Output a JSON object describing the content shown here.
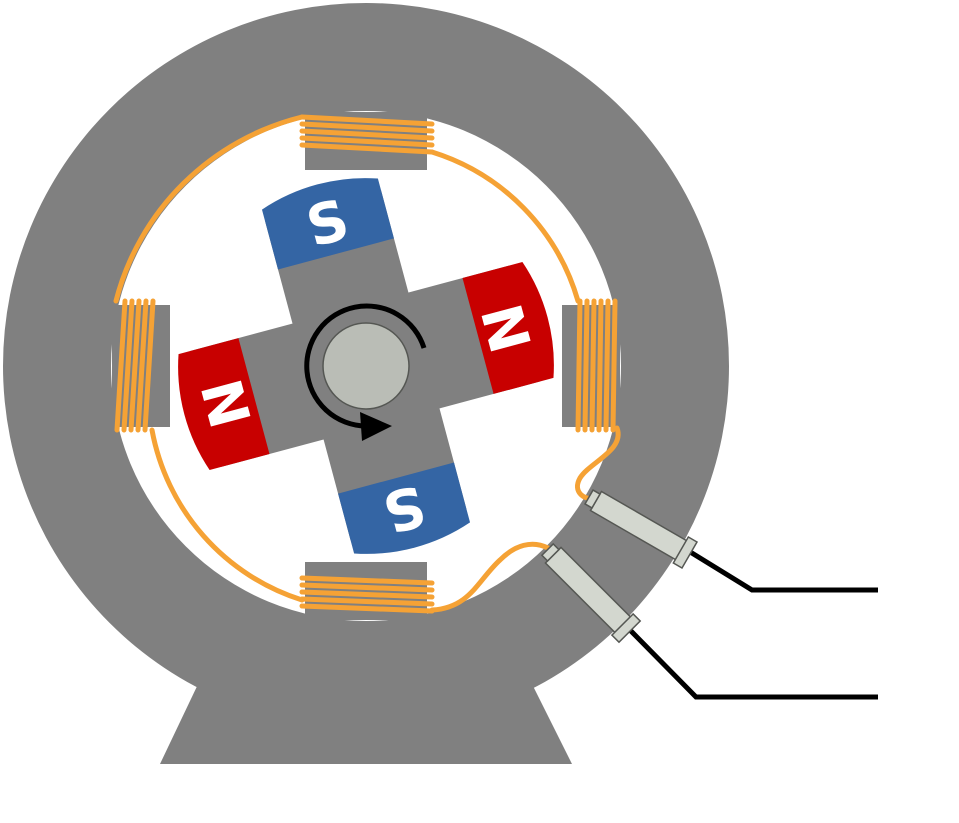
{
  "diagram": {
    "colors": {
      "stator": "#808080",
      "coil": "#f5a235",
      "coil_line": "#e08a1a",
      "north": "#c80000",
      "south": "#3465a4",
      "shaft": "#babdb6",
      "terminal": "#d3d7cf",
      "wire": "#000000",
      "background": "#ffffff"
    },
    "rotor": {
      "poles": [
        {
          "letter": "S",
          "polarity": "south"
        },
        {
          "letter": "N",
          "polarity": "north"
        },
        {
          "letter": "S",
          "polarity": "south"
        },
        {
          "letter": "N",
          "polarity": "north"
        }
      ],
      "rotation": "clockwise"
    },
    "stator_coils": [
      "top",
      "right",
      "bottom",
      "left"
    ],
    "terminals": 2
  }
}
